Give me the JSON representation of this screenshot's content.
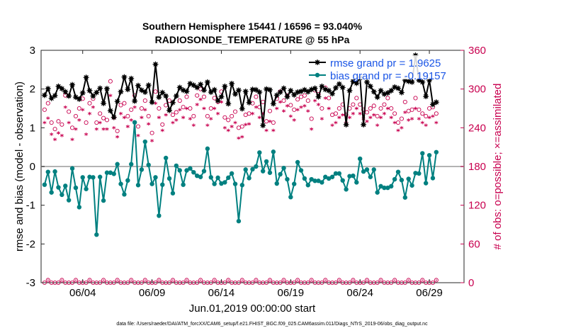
{
  "chart_data": {
    "type": "line",
    "title": "Southern Hemisphere 15441 / 16596 = 93.040%",
    "subtitle": "RADIOSONDE_TEMPERATURE @ 55 hPa",
    "xlabel": "Jun.01,2019 00:00:00 start",
    "ylabel": "rmse and bias (model - observation)",
    "ylabel_right": "# of obs: o=possible; ×=assimilated",
    "footnote": "data file: /Users/raeder/DAI/ATM_forcXX/CAM6_setup/f.e21.FHIST_BGC.f09_025.CAM6assim.011/Diags_NTrS_2019-06/obs_diag_output.nc",
    "xlim": [
      1,
      31.5
    ],
    "ylim": [
      -3,
      3
    ],
    "ylim_right": [
      0,
      360
    ],
    "x_ticks": [
      {
        "x": 4,
        "label": "06/04"
      },
      {
        "x": 9,
        "label": "06/09"
      },
      {
        "x": 14,
        "label": "06/14"
      },
      {
        "x": 19,
        "label": "06/19"
      },
      {
        "x": 24,
        "label": "06/24"
      },
      {
        "x": 29,
        "label": "06/29"
      }
    ],
    "y_ticks": [
      {
        "v": -3,
        "label": "-3"
      },
      {
        "v": -2,
        "label": "-2"
      },
      {
        "v": -1,
        "label": "-1"
      },
      {
        "v": 0,
        "label": "0"
      },
      {
        "v": 1,
        "label": "1"
      },
      {
        "v": 2,
        "label": "2"
      },
      {
        "v": 3,
        "label": "3"
      }
    ],
    "y_ticks_right": [
      {
        "v": 0,
        "label": "0"
      },
      {
        "v": 60,
        "label": "60"
      },
      {
        "v": 120,
        "label": "120"
      },
      {
        "v": 180,
        "label": "180"
      },
      {
        "v": 240,
        "label": "240"
      },
      {
        "v": 300,
        "label": "300"
      },
      {
        "v": 360,
        "label": "360"
      }
    ],
    "series": [
      {
        "name": "rmse grand pr = 1.9625",
        "color": "#000000",
        "marker": "star",
        "values": [
          1.84,
          2.01,
          1.76,
          1.83,
          2.07,
          2.01,
          1.93,
          1.82,
          2.11,
          1.79,
          1.74,
          1.9,
          2.3,
          1.96,
          1.82,
          1.91,
          2.02,
          1.63,
          2.01,
          1.44,
          1.27,
          1.68,
          1.93,
          2.31,
          1.99,
          2.27,
          1.69,
          2.09,
          1.97,
          1.92,
          2.1,
          1.66,
          2.64,
          1.79,
          1.91,
          1.82,
          1.45,
          1.65,
          1.82,
          2.04,
          1.97,
          1.94,
          2.14,
          2.1,
          2.04,
          2.12,
          1.97,
          2.18,
          1.92,
          1.98,
          1.7,
          1.8,
          2.07,
          1.62,
          2.14,
          1.87,
          1.97,
          1.49,
          1.94,
          1.65,
          1.99,
          1.98,
          1.92,
          1.06,
          2.0,
          1.98,
          1.62,
          1.84,
          1.92,
          2.02,
          1.8,
          1.96,
          1.85,
          1.92,
          1.94,
          1.98,
          1.93,
          1.99,
          2.02,
          1.8,
          2.07,
          1.99,
          1.96,
          1.88,
          2.03,
          2.13,
          2.04,
          1.08,
          1.96,
          2.2,
          2.15,
          2.29,
          1.08,
          2.18,
          2.07,
          1.93,
          1.79,
          1.96,
          1.87,
          1.9,
          1.96,
          2.05,
          2.02,
          1.91,
          2.23,
          2.2,
          2.18,
          2.87,
          2.23,
          2.18,
          1.81,
          2.23,
          1.6,
          1.66
        ]
      },
      {
        "name": "bias grand pr = -0.19157",
        "color": "#008080",
        "marker": "dot",
        "values": [
          -0.47,
          -0.14,
          -0.67,
          -0.13,
          -0.54,
          -0.73,
          -0.5,
          -0.87,
          -0.05,
          -0.55,
          -1.05,
          -0.28,
          -0.58,
          -0.27,
          -0.28,
          -1.76,
          -0.27,
          -0.88,
          -0.16,
          -0.16,
          -0.19,
          0.06,
          -0.45,
          -0.72,
          -0.36,
          0.06,
          1.14,
          -0.48,
          -0.08,
          0.64,
          0.04,
          -0.45,
          -0.28,
          -1.27,
          -0.47,
          0.22,
          -0.31,
          -0.69,
          0.02,
          -0.1,
          -0.47,
          -0.1,
          -0.05,
          -0.15,
          -0.24,
          -0.27,
          -0.12,
          0.46,
          -0.28,
          -0.45,
          -0.29,
          -0.44,
          -0.41,
          -0.29,
          -0.18,
          -0.45,
          -1.41,
          -0.48,
          -0.08,
          -0.3,
          -0.07,
          0.0,
          0.36,
          -0.12,
          0.13,
          -0.16,
          0.38,
          -0.44,
          -0.2,
          -0.04,
          -0.33,
          -0.79,
          -0.45,
          0.11,
          -0.1,
          -0.31,
          -0.48,
          -0.33,
          -0.37,
          -0.37,
          -0.41,
          -0.27,
          -0.31,
          -0.27,
          -0.18,
          -0.18,
          -0.36,
          -0.59,
          -0.25,
          -0.24,
          -0.41,
          0.2,
          -0.13,
          -0.08,
          -0.27,
          -0.08,
          -0.67,
          -0.51,
          -0.55,
          -0.55,
          -0.51,
          -0.33,
          -0.14,
          -0.35,
          -0.8,
          -0.32,
          -0.49,
          -0.17,
          -0.18,
          0.34,
          -0.43,
          0.29,
          -0.3,
          0.37
        ]
      }
    ],
    "obs_counts": {
      "possible": [
        268,
        278,
        248,
        238,
        250,
        245,
        290,
        265,
        240,
        258,
        270,
        285,
        248,
        278,
        285,
        248,
        262,
        255,
        252,
        312,
        256,
        235,
        275,
        278,
        258,
        268,
        290,
        242,
        270,
        282,
        258,
        232,
        296,
        270,
        245,
        275,
        282,
        260,
        264,
        282,
        272,
        288,
        270,
        258,
        290,
        300,
        288,
        258,
        270,
        286,
        280,
        296,
        256,
        252,
        258,
        265,
        240,
        242,
        260,
        262,
        278,
        288,
        272,
        280,
        250,
        266,
        248,
        285,
        296,
        282,
        290,
        275,
        268,
        284,
        288,
        290,
        282,
        254,
        298,
        292,
        270,
        302,
        286,
        260,
        262,
        270,
        276,
        260,
        270,
        276,
        286,
        276,
        268,
        264,
        270,
        274,
        258,
        270,
        276,
        286,
        270,
        262,
        248,
        254,
        280,
        266,
        268,
        286,
        268,
        262,
        258,
        270,
        272,
        262
      ],
      "assimilated": [
        248,
        255,
        230,
        222,
        232,
        228,
        272,
        248,
        222,
        238,
        252,
        268,
        230,
        262,
        272,
        238,
        248,
        238,
        238,
        290,
        240,
        226,
        262,
        256,
        242,
        252,
        272,
        228,
        256,
        268,
        246,
        220,
        278,
        256,
        236,
        260,
        268,
        248,
        252,
        268,
        256,
        270,
        254,
        244,
        276,
        284,
        270,
        244,
        254,
        270,
        262,
        280,
        240,
        236,
        242,
        248,
        224,
        226,
        245,
        246,
        262,
        272,
        256,
        262,
        236,
        250,
        236,
        270,
        280,
        266,
        274,
        258,
        252,
        268,
        272,
        274,
        266,
        238,
        282,
        276,
        254,
        286,
        270,
        244,
        248,
        256,
        260,
        248,
        256,
        262,
        270,
        262,
        254,
        250,
        256,
        260,
        244,
        256,
        262,
        270,
        256,
        248,
        236,
        240,
        264,
        252,
        254,
        270,
        254,
        248,
        244,
        256,
        258,
        248
      ]
    }
  },
  "legend": {
    "rmse_label": "rmse grand pr = 1.9625",
    "bias_label": "bias grand pr = -0.19157"
  }
}
